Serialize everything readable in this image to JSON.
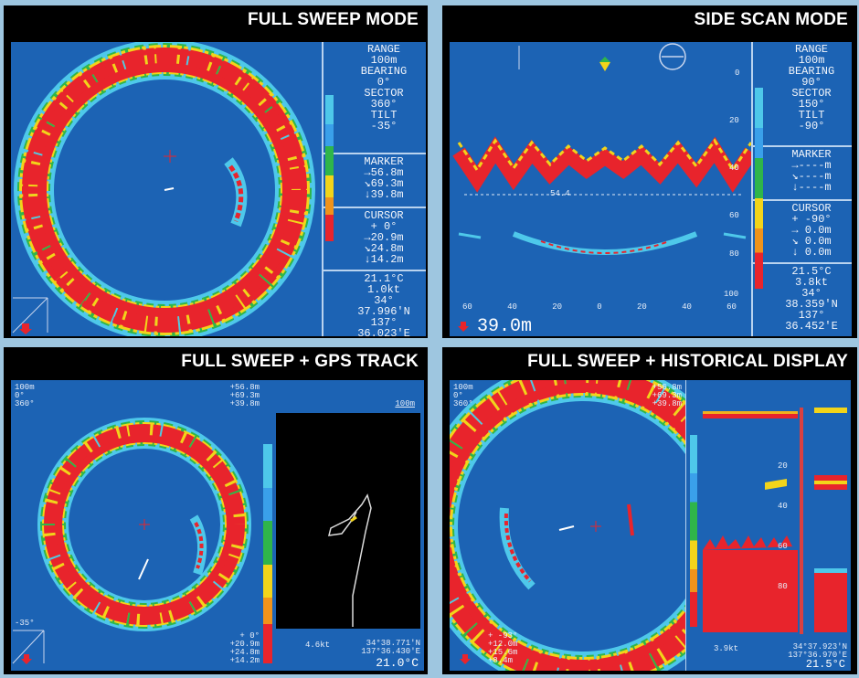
{
  "colors": {
    "screen": "#1c63b4",
    "echo_strong": "#e8242c",
    "echo_mid": "#f2d41a",
    "echo_weak": "#2fb54a",
    "echo_faint": "#4ec8ea",
    "border": "#9ec6e0"
  },
  "panels": {
    "full_sweep": {
      "title": "FULL SWEEP MODE",
      "range_label": "RANGE",
      "range_value": "100m",
      "bearing_label": "BEARING",
      "bearing_value": "0°",
      "sector_label": "SECTOR",
      "sector_value": "360°",
      "tilt_label": "TILT",
      "tilt_value": "-35°",
      "marker_label": "MARKER",
      "marker_lines": [
        "→56.8m",
        "↘69.3m",
        "↓39.8m"
      ],
      "cursor_label": "CURSOR",
      "cursor_lines": [
        "+ 0°",
        "→20.9m",
        "↘24.8m",
        "↓14.2m"
      ],
      "env_lines": [
        "21.1°C",
        "1.0kt",
        "34°",
        "37.996'N",
        "137°",
        "36.023'E"
      ]
    },
    "side_scan": {
      "title": "SIDE SCAN MODE",
      "range_label": "RANGE",
      "range_value": "100m",
      "bearing_label": "BEARING",
      "bearing_value": "90°",
      "sector_label": "SECTOR",
      "sector_value": "150°",
      "tilt_label": "TILT",
      "tilt_value": "-90°",
      "marker_label": "MARKER",
      "marker_lines": [
        "→----m",
        "↘----m",
        "↓----m"
      ],
      "cursor_label": "CURSOR",
      "cursor_lines": [
        "+ -90°",
        "→ 0.0m",
        "↘ 0.0m",
        "↓ 0.0m"
      ],
      "env_lines": [
        "21.5°C",
        "3.8kt",
        "34°",
        "38.359'N",
        "137°",
        "36.452'E"
      ],
      "depth_line_label": "54.4",
      "depth_readout": "39.0m",
      "x_ticks": [
        "60",
        "40",
        "20",
        "0",
        "20",
        "40",
        "60"
      ],
      "y_ticks": [
        "0",
        "20",
        "40",
        "60",
        "80",
        "100"
      ]
    },
    "gps_track": {
      "title": "FULL SWEEP + GPS TRACK",
      "top_left": [
        "100m",
        "0°",
        "360°"
      ],
      "top_right": [
        "+56.8m",
        "+69.3m",
        "+39.8m"
      ],
      "tilt_corner": "-35°",
      "bottom_right": [
        "+ 0°",
        "+20.9m",
        "+24.8m",
        "+14.2m"
      ],
      "track_scale": "100m",
      "speed": "4.6kt",
      "position": [
        "34°38.771'N",
        "137°36.430'E"
      ],
      "temperature": "21.0°C"
    },
    "historical": {
      "title": "FULL SWEEP + HISTORICAL DISPLAY",
      "top_left": [
        "100m",
        "0°",
        "360°"
      ],
      "top_right": [
        "+56.8m",
        "+69.3m",
        "+39.8m"
      ],
      "bottom_left": [
        "+ -93°",
        "+12.0m",
        "+15.6m",
        "+8.4m"
      ],
      "speed": "3.9kt",
      "position": [
        "34°37.923'N",
        "137°36.970'E"
      ],
      "temperature": "21.5°C",
      "y_ticks": [
        "20",
        "40",
        "60",
        "80"
      ]
    }
  }
}
